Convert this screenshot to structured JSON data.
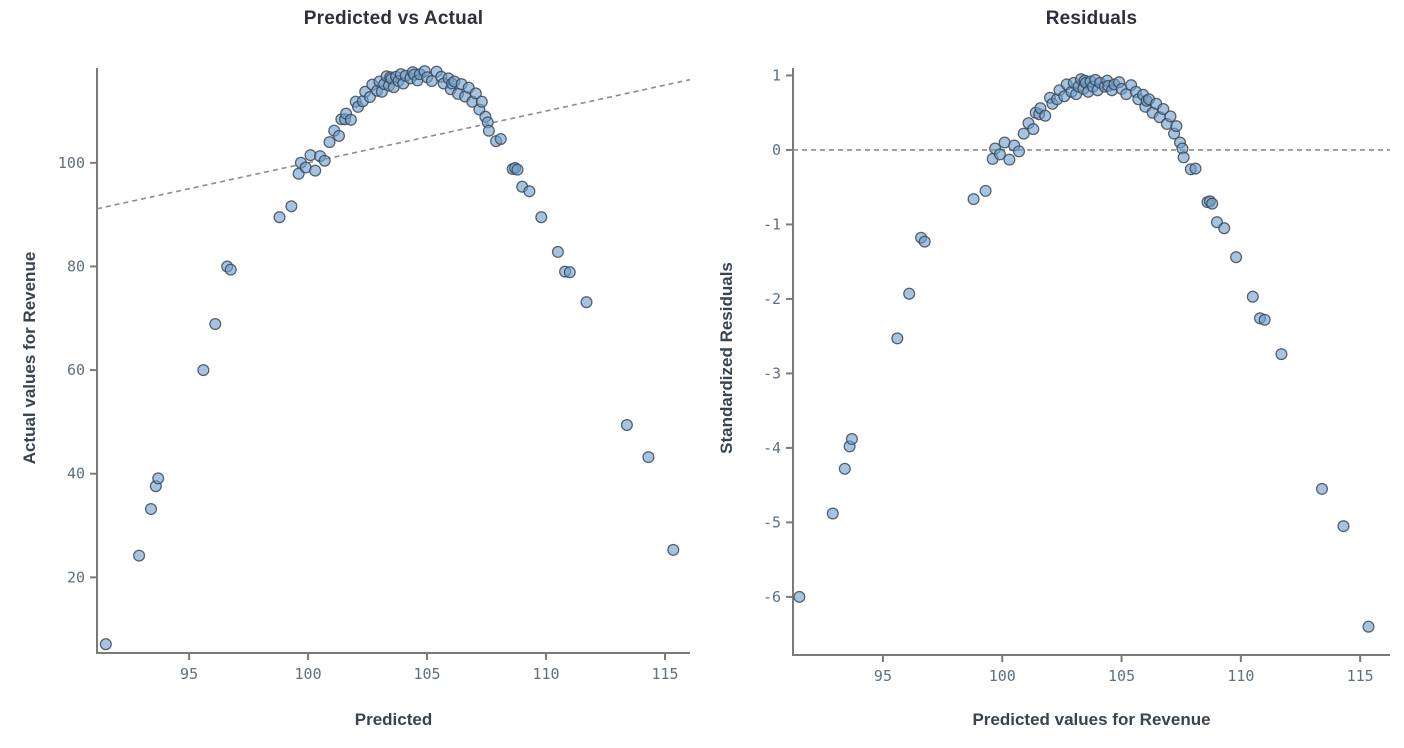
{
  "figure": {
    "background": "#ffffff"
  },
  "chart_data": [
    {
      "type": "scatter",
      "title": "Predicted vs Actual",
      "xlabel": "Predicted",
      "ylabel": "Actual values for Revenue",
      "xlim": [
        91.13,
        116.05
      ],
      "ylim": [
        5.4,
        118.3
      ],
      "xticks": [
        95,
        100,
        105,
        110,
        115
      ],
      "yticks": [
        20,
        40,
        60,
        80,
        100
      ],
      "grid": false,
      "legend": null,
      "ref_line": {
        "kind": "identity",
        "style": "dashed",
        "x1": 91.13,
        "y1": 91.13,
        "x2": 116.05,
        "y2": 116.05
      },
      "x": [
        91.5,
        92.9,
        93.4,
        93.6,
        93.7,
        95.6,
        96.1,
        96.6,
        96.75,
        98.8,
        99.3,
        99.6,
        99.7,
        99.9,
        100.1,
        100.3,
        100.5,
        100.7,
        100.9,
        101.1,
        101.3,
        101.4,
        101.55,
        101.6,
        101.8,
        102.0,
        102.1,
        102.3,
        102.4,
        102.6,
        102.7,
        102.9,
        103.0,
        103.1,
        103.2,
        103.3,
        103.4,
        103.45,
        103.5,
        103.6,
        103.7,
        103.8,
        103.9,
        104.0,
        104.1,
        104.3,
        104.4,
        104.45,
        104.6,
        104.7,
        104.9,
        105.0,
        105.2,
        105.4,
        105.6,
        105.7,
        105.9,
        106.0,
        106.05,
        106.15,
        106.3,
        106.45,
        106.6,
        106.75,
        106.9,
        107.05,
        107.2,
        107.3,
        107.45,
        107.55,
        107.6,
        107.9,
        108.1,
        108.6,
        108.7,
        108.8,
        109.0,
        109.3,
        109.8,
        110.5,
        110.8,
        111.0,
        111.7,
        113.4,
        114.3,
        115.35
      ],
      "y": [
        7.1,
        24.2,
        33.2,
        37.6,
        39.1,
        60.0,
        68.9,
        80.0,
        79.4,
        89.5,
        91.6,
        97.9,
        100.0,
        99.1,
        101.5,
        98.5,
        101.3,
        100.4,
        104.0,
        106.2,
        105.2,
        108.4,
        108.4,
        109.5,
        108.3,
        111.8,
        110.8,
        111.9,
        113.7,
        112.7,
        115.1,
        113.9,
        115.7,
        113.7,
        115.2,
        116.7,
        114.9,
        116.5,
        116.2,
        114.6,
        116.6,
        115.8,
        117.1,
        115.3,
        116.8,
        116.3,
        117.5,
        117.0,
        115.9,
        117.1,
        117.7,
        116.5,
        115.8,
        117.6,
        116.6,
        115.3,
        116.3,
        114.2,
        115.3,
        115.7,
        113.3,
        115.2,
        112.8,
        114.5,
        111.8,
        113.4,
        110.3,
        111.8,
        108.9,
        107.8,
        106.2,
        104.2,
        104.6,
        98.8,
        99.0,
        98.7,
        95.4,
        94.5,
        89.5,
        82.8,
        79.0,
        78.9,
        73.1,
        49.4,
        43.2,
        25.3
      ]
    },
    {
      "type": "scatter",
      "title": "Residuals",
      "xlabel": "Predicted values for Revenue",
      "ylabel": "Standardized Residuals",
      "xlim": [
        91.23,
        116.25
      ],
      "ylim": [
        -6.78,
        1.1
      ],
      "xticks": [
        95,
        100,
        105,
        110,
        115
      ],
      "yticks": [
        1,
        0,
        -1,
        -2,
        -3,
        -4,
        -5,
        -6
      ],
      "grid": false,
      "legend": null,
      "ref_line": {
        "kind": "horizontal",
        "style": "dashed",
        "y": 0
      },
      "x": [
        91.5,
        92.9,
        93.4,
        93.6,
        93.7,
        95.6,
        96.1,
        96.6,
        96.75,
        98.8,
        99.3,
        99.6,
        99.7,
        99.9,
        100.1,
        100.3,
        100.5,
        100.7,
        100.9,
        101.1,
        101.3,
        101.4,
        101.55,
        101.6,
        101.8,
        102.0,
        102.1,
        102.3,
        102.4,
        102.6,
        102.7,
        102.9,
        103.0,
        103.1,
        103.2,
        103.3,
        103.4,
        103.45,
        103.5,
        103.6,
        103.7,
        103.8,
        103.9,
        104.0,
        104.1,
        104.3,
        104.4,
        104.45,
        104.6,
        104.7,
        104.9,
        105.0,
        105.2,
        105.4,
        105.6,
        105.7,
        105.9,
        106.0,
        106.05,
        106.15,
        106.3,
        106.45,
        106.6,
        106.75,
        106.9,
        107.05,
        107.2,
        107.3,
        107.45,
        107.55,
        107.6,
        107.9,
        108.1,
        108.6,
        108.7,
        108.8,
        109.0,
        109.3,
        109.8,
        110.5,
        110.8,
        111.0,
        111.7,
        113.4,
        114.3,
        115.35
      ],
      "y": [
        -6.0,
        -4.88,
        -4.28,
        -3.98,
        -3.88,
        -2.53,
        -1.93,
        -1.18,
        -1.23,
        -0.66,
        -0.55,
        -0.12,
        0.02,
        -0.06,
        0.1,
        -0.13,
        0.06,
        -0.02,
        0.22,
        0.36,
        0.28,
        0.5,
        0.48,
        0.56,
        0.46,
        0.7,
        0.62,
        0.68,
        0.8,
        0.72,
        0.88,
        0.78,
        0.9,
        0.75,
        0.85,
        0.95,
        0.82,
        0.93,
        0.9,
        0.78,
        0.92,
        0.85,
        0.94,
        0.8,
        0.9,
        0.85,
        0.93,
        0.86,
        0.8,
        0.88,
        0.91,
        0.82,
        0.75,
        0.87,
        0.78,
        0.68,
        0.74,
        0.58,
        0.66,
        0.68,
        0.5,
        0.62,
        0.44,
        0.55,
        0.35,
        0.45,
        0.22,
        0.32,
        0.1,
        0.02,
        -0.1,
        -0.26,
        -0.25,
        -0.7,
        -0.69,
        -0.72,
        -0.97,
        -1.05,
        -1.44,
        -1.97,
        -2.26,
        -2.28,
        -2.74,
        -4.55,
        -5.05,
        -6.4
      ]
    }
  ],
  "style": {
    "marker_fill": "#6ca0cf",
    "marker_fill_opacity": 0.62,
    "marker_edge": "#3f4752",
    "marker_edge_opacity": 0.85,
    "marker_radius": 5.4,
    "spine_color": "#7a7a7a",
    "tick_label_color": "#60707f",
    "axis_label_color": "#3a4350",
    "title_color": "#2e2e3e",
    "ref_line_color": "#8c8c8c",
    "background": "#ffffff"
  }
}
